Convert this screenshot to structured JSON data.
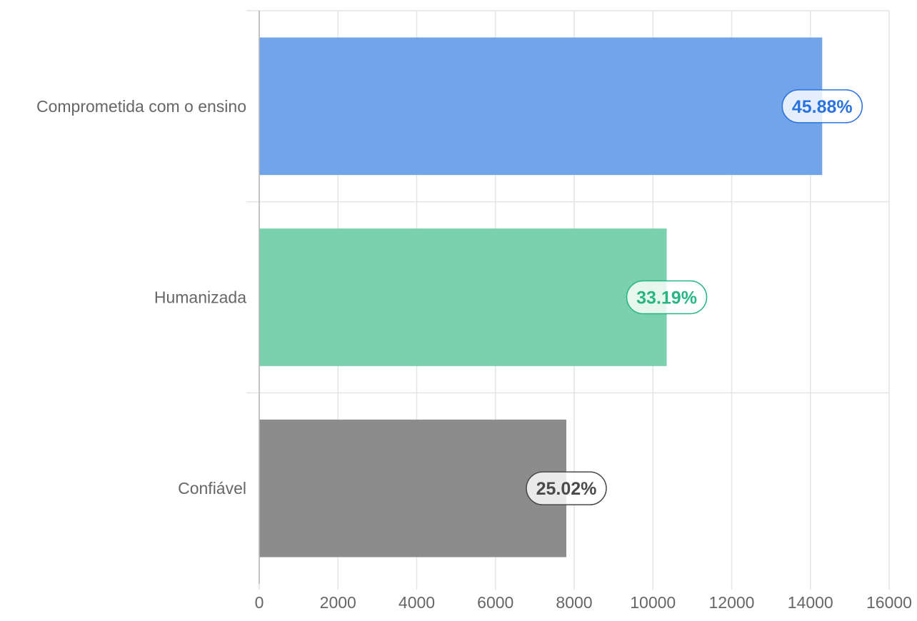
{
  "chart_data": {
    "type": "bar",
    "orientation": "horizontal",
    "categories": [
      "Comprometida com o ensino",
      "Humanizada",
      "Confiável"
    ],
    "values": [
      14300,
      10350,
      7800
    ],
    "data_labels": [
      "45.88%",
      "33.19%",
      "25.02%"
    ],
    "bar_colors": [
      "#72a4e9",
      "#7ad1ad",
      "#8c8c8c"
    ],
    "label_text_colors": [
      "#2a73e0",
      "#27b583",
      "#4a4a4a"
    ],
    "label_border_colors": [
      "#2a73e0",
      "#27b583",
      "#4a4a4a"
    ],
    "xlim": [
      0,
      16000
    ],
    "xticks": [
      0,
      2000,
      4000,
      6000,
      8000,
      10000,
      12000,
      14000,
      16000
    ],
    "xtick_labels": [
      "0",
      "2000",
      "4000",
      "6000",
      "8000",
      "10000",
      "12000",
      "14000",
      "16000"
    ],
    "grid": true,
    "title": "",
    "xlabel": "",
    "ylabel": ""
  }
}
